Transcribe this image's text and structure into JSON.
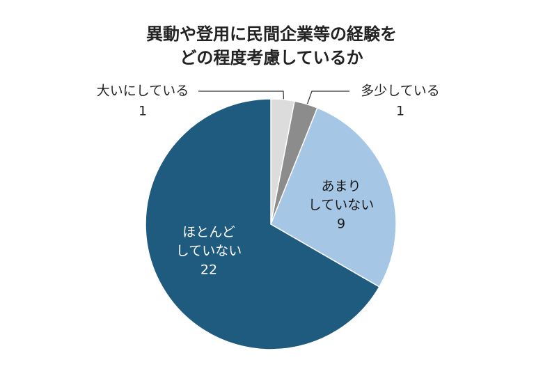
{
  "chart_data": {
    "type": "pie",
    "title": [
      "異動や登用に民間企業等の経験を",
      "どの程度考慮しているか"
    ],
    "categories": [
      [
        "大いにしている"
      ],
      [
        "多少している"
      ],
      [
        "あまり",
        "していない"
      ],
      [
        "ほとんど",
        "していない"
      ]
    ],
    "values": [
      1,
      1,
      9,
      22
    ],
    "colors": [
      "#dcdcdc",
      "#8c8c8c",
      "#a6c6e6",
      "#1f5b7e"
    ]
  }
}
